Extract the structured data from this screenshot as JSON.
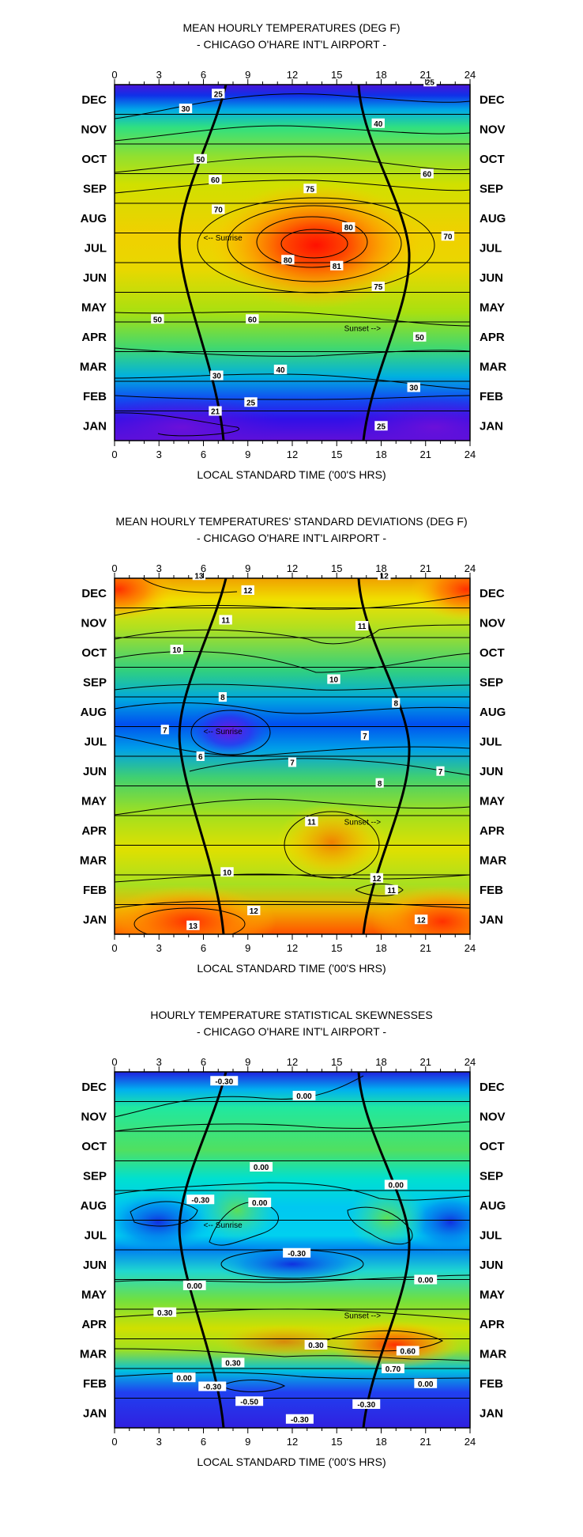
{
  "chart_data": [
    {
      "type": "heatmap",
      "title": "MEAN HOURLY TEMPERATURES (DEG F)",
      "subtitle": "- CHICAGO O'HARE INT'L AIRPORT -",
      "xlabel": "LOCAL STANDARD TIME ('00'S HRS)",
      "xlim": [
        0,
        24
      ],
      "x_ticks": [
        "0",
        "3",
        "6",
        "9",
        "12",
        "15",
        "18",
        "21",
        "24"
      ],
      "months": [
        "DEC",
        "NOV",
        "OCT",
        "SEP",
        "AUG",
        "JUL",
        "JUN",
        "MAY",
        "APR",
        "MAR",
        "FEB",
        "JAN"
      ],
      "sunrise_label": "<-- Sunrise",
      "sunset_label": "Sunset -->",
      "contour_labels": [
        {
          "text": "25",
          "hour": 7.0,
          "month": 11.7
        },
        {
          "text": "25",
          "hour": 21.3,
          "month": 12.1
        },
        {
          "text": "30",
          "hour": 4.8,
          "month": 11.2
        },
        {
          "text": "40",
          "hour": 17.8,
          "month": 10.7
        },
        {
          "text": "50",
          "hour": 5.8,
          "month": 9.5
        },
        {
          "text": "60",
          "hour": 6.8,
          "month": 8.8
        },
        {
          "text": "60",
          "hour": 21.1,
          "month": 9.0
        },
        {
          "text": "75",
          "hour": 13.2,
          "month": 8.5
        },
        {
          "text": "70",
          "hour": 7.0,
          "month": 7.8
        },
        {
          "text": "80",
          "hour": 15.8,
          "month": 7.2
        },
        {
          "text": "70",
          "hour": 22.5,
          "month": 6.9
        },
        {
          "text": "80",
          "hour": 11.7,
          "month": 6.1
        },
        {
          "text": "81",
          "hour": 15.0,
          "month": 5.9
        },
        {
          "text": "75",
          "hour": 17.8,
          "month": 5.2
        },
        {
          "text": "50",
          "hour": 2.9,
          "month": 4.1
        },
        {
          "text": "60",
          "hour": 9.3,
          "month": 4.1
        },
        {
          "text": "50",
          "hour": 20.6,
          "month": 3.5
        },
        {
          "text": "40",
          "hour": 11.2,
          "month": 2.4
        },
        {
          "text": "30",
          "hour": 6.9,
          "month": 2.2
        },
        {
          "text": "30",
          "hour": 20.2,
          "month": 1.8
        },
        {
          "text": "25",
          "hour": 9.2,
          "month": 1.3
        },
        {
          "text": "21",
          "hour": 6.8,
          "month": 1.0
        },
        {
          "text": "25",
          "hour": 18.0,
          "month": 0.5
        }
      ]
    },
    {
      "type": "heatmap",
      "title": "MEAN HOURLY TEMPERATURES' STANDARD DEVIATIONS (DEG F)",
      "subtitle": "- CHICAGO O'HARE INT'L AIRPORT -",
      "xlabel": "LOCAL STANDARD TIME ('00'S HRS)",
      "xlim": [
        0,
        24
      ],
      "x_ticks": [
        "0",
        "3",
        "6",
        "9",
        "12",
        "15",
        "18",
        "21",
        "24"
      ],
      "months": [
        "DEC",
        "NOV",
        "OCT",
        "SEP",
        "AUG",
        "JUL",
        "JUN",
        "MAY",
        "APR",
        "MAR",
        "FEB",
        "JAN"
      ],
      "sunrise_label": "<-- Sunrise",
      "sunset_label": "Sunset -->",
      "contour_labels": [
        {
          "text": "13",
          "hour": 5.7,
          "month": 12.1
        },
        {
          "text": "12",
          "hour": 9.0,
          "month": 11.6
        },
        {
          "text": "12",
          "hour": 18.2,
          "month": 12.1
        },
        {
          "text": "11",
          "hour": 7.5,
          "month": 10.6
        },
        {
          "text": "11",
          "hour": 16.7,
          "month": 10.4
        },
        {
          "text": "10",
          "hour": 4.2,
          "month": 9.6
        },
        {
          "text": "10",
          "hour": 14.8,
          "month": 8.6
        },
        {
          "text": "8",
          "hour": 7.3,
          "month": 8.0
        },
        {
          "text": "8",
          "hour": 19.0,
          "month": 7.8
        },
        {
          "text": "7",
          "hour": 3.4,
          "month": 6.9
        },
        {
          "text": "7",
          "hour": 16.9,
          "month": 6.7
        },
        {
          "text": "6",
          "hour": 5.8,
          "month": 6.0
        },
        {
          "text": "7",
          "hour": 12.0,
          "month": 5.8
        },
        {
          "text": "7",
          "hour": 22.0,
          "month": 5.5
        },
        {
          "text": "8",
          "hour": 17.9,
          "month": 5.1
        },
        {
          "text": "11",
          "hour": 13.3,
          "month": 3.8
        },
        {
          "text": "10",
          "hour": 7.6,
          "month": 2.1
        },
        {
          "text": "12",
          "hour": 17.7,
          "month": 1.9
        },
        {
          "text": "11",
          "hour": 18.7,
          "month": 1.5
        },
        {
          "text": "12",
          "hour": 9.4,
          "month": 0.8
        },
        {
          "text": "12",
          "hour": 20.7,
          "month": 0.5
        },
        {
          "text": "13",
          "hour": 5.3,
          "month": 0.3
        }
      ]
    },
    {
      "type": "heatmap",
      "title": "HOURLY TEMPERATURE  STATISTICAL SKEWNESSES",
      "subtitle": "- CHICAGO O'HARE INT'L AIRPORT -",
      "xlabel": "LOCAL STANDARD TIME ('00'S HRS)",
      "xlim": [
        0,
        24
      ],
      "x_ticks": [
        "0",
        "3",
        "6",
        "9",
        "12",
        "15",
        "18",
        "21",
        "24"
      ],
      "months": [
        "DEC",
        "NOV",
        "OCT",
        "SEP",
        "AUG",
        "JUL",
        "JUN",
        "MAY",
        "APR",
        "MAR",
        "FEB",
        "JAN"
      ],
      "sunrise_label": "<-- Sunrise",
      "sunset_label": "Sunset -->",
      "contour_labels": [
        {
          "text": "-0.30",
          "hour": 7.4,
          "month": 11.7
        },
        {
          "text": "0.00",
          "hour": 12.8,
          "month": 11.2
        },
        {
          "text": "0.00",
          "hour": 9.9,
          "month": 8.8
        },
        {
          "text": "0.00",
          "hour": 19.0,
          "month": 8.2
        },
        {
          "text": "-0.30",
          "hour": 5.8,
          "month": 7.7
        },
        {
          "text": "0.00",
          "hour": 9.8,
          "month": 7.6
        },
        {
          "text": "-0.30",
          "hour": 12.3,
          "month": 5.9
        },
        {
          "text": "0.00",
          "hour": 5.4,
          "month": 4.8
        },
        {
          "text": "0.00",
          "hour": 21.0,
          "month": 5.0
        },
        {
          "text": "0.30",
          "hour": 3.4,
          "month": 3.9
        },
        {
          "text": "0.30",
          "hour": 13.6,
          "month": 2.8
        },
        {
          "text": "0.60",
          "hour": 19.8,
          "month": 2.6
        },
        {
          "text": "0.30",
          "hour": 8.0,
          "month": 2.2
        },
        {
          "text": "0.70",
          "hour": 18.8,
          "month": 2.0
        },
        {
          "text": "0.00",
          "hour": 4.7,
          "month": 1.7
        },
        {
          "text": "0.00",
          "hour": 21.0,
          "month": 1.5
        },
        {
          "text": "-0.30",
          "hour": 6.6,
          "month": 1.4
        },
        {
          "text": "-0.50",
          "hour": 9.1,
          "month": 0.9
        },
        {
          "text": "-0.30",
          "hour": 17.0,
          "month": 0.8
        },
        {
          "text": "-0.30",
          "hour": 12.5,
          "month": 0.3
        }
      ]
    }
  ]
}
